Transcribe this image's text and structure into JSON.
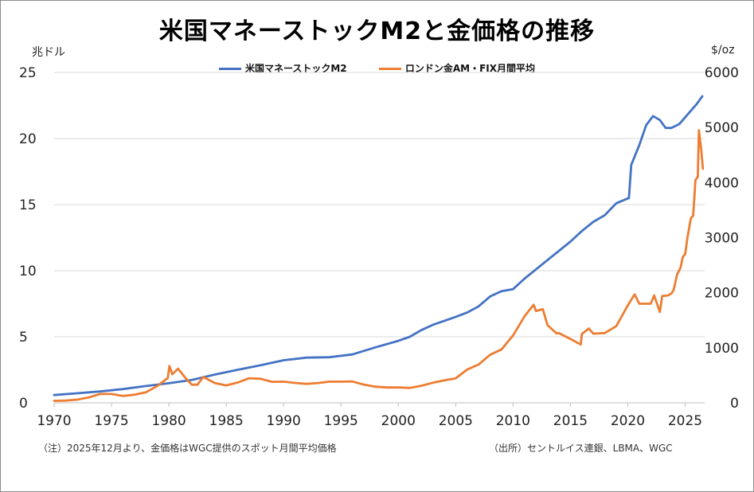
{
  "title": "米国マネーストックM2と金価格の推移",
  "unit_left": "兆ドル",
  "unit_right": "$/oz",
  "note_left": "（注）2025年12月より、金価格はWGC提供のスポット月間平均価格",
  "note_right": "（出所）セントルイス連銀、LBMA、WGC",
  "colors": {
    "m2": "#4472c4",
    "gold": "#ed7d31",
    "grid": "#d9d9d9",
    "axis": "#bfbfbf"
  },
  "chart_data": {
    "type": "line",
    "title": "米国マネーストックM2と金価格の推移",
    "x_ticks": [
      "1970",
      "1975",
      "1980",
      "1985",
      "1990",
      "1995",
      "2000",
      "2005",
      "2010",
      "2015",
      "2020",
      "2025"
    ],
    "xlim": [
      1970,
      2026.7
    ],
    "y_left": {
      "label": "兆ドル",
      "lim": [
        0,
        25
      ],
      "ticks": [
        "0",
        "5",
        "10",
        "15",
        "20",
        "25"
      ]
    },
    "y_right": {
      "label": "$/oz",
      "lim": [
        0,
        6000
      ],
      "ticks": [
        "0",
        "1000",
        "2000",
        "3000",
        "4000",
        "5000",
        "6000"
      ]
    },
    "grid": true,
    "legend_position": "top-center",
    "series": [
      {
        "name": "米国マネーストックM2",
        "axis": "left",
        "points": [
          [
            1970,
            0.59
          ],
          [
            1972,
            0.72
          ],
          [
            1974,
            0.86
          ],
          [
            1976,
            1.04
          ],
          [
            1978,
            1.27
          ],
          [
            1980,
            1.48
          ],
          [
            1982,
            1.73
          ],
          [
            1984,
            2.14
          ],
          [
            1986,
            2.5
          ],
          [
            1988,
            2.85
          ],
          [
            1990,
            3.22
          ],
          [
            1992,
            3.42
          ],
          [
            1994,
            3.45
          ],
          [
            1996,
            3.66
          ],
          [
            1998,
            4.2
          ],
          [
            2000,
            4.69
          ],
          [
            2001,
            5.0
          ],
          [
            2002,
            5.5
          ],
          [
            2003,
            5.9
          ],
          [
            2004,
            6.2
          ],
          [
            2005,
            6.5
          ],
          [
            2006,
            6.83
          ],
          [
            2007,
            7.3
          ],
          [
            2008,
            8.05
          ],
          [
            2009,
            8.45
          ],
          [
            2010,
            8.6
          ],
          [
            2011,
            9.4
          ],
          [
            2012,
            10.1
          ],
          [
            2013,
            10.8
          ],
          [
            2014,
            11.5
          ],
          [
            2015,
            12.2
          ],
          [
            2016,
            13.0
          ],
          [
            2017,
            13.7
          ],
          [
            2018,
            14.2
          ],
          [
            2019,
            15.1
          ],
          [
            2020.1,
            15.5
          ],
          [
            2020.3,
            18.0
          ],
          [
            2021,
            19.5
          ],
          [
            2021.6,
            21.0
          ],
          [
            2022.2,
            21.7
          ],
          [
            2022.8,
            21.4
          ],
          [
            2023.3,
            20.8
          ],
          [
            2023.8,
            20.8
          ],
          [
            2024.5,
            21.1
          ],
          [
            2025,
            21.6
          ],
          [
            2025.5,
            22.1
          ],
          [
            2026,
            22.6
          ],
          [
            2026.5,
            23.2
          ]
        ]
      },
      {
        "name": "ロンドン金AM・FIX月間平均",
        "axis": "right",
        "points": [
          [
            1970,
            36
          ],
          [
            1971,
            41
          ],
          [
            1972,
            58
          ],
          [
            1973,
            97
          ],
          [
            1974,
            160
          ],
          [
            1975,
            161
          ],
          [
            1976,
            125
          ],
          [
            1977,
            148
          ],
          [
            1978,
            193
          ],
          [
            1979,
            306
          ],
          [
            1979.9,
            450
          ],
          [
            1980.05,
            670
          ],
          [
            1980.3,
            520
          ],
          [
            1980.8,
            620
          ],
          [
            1981.5,
            440
          ],
          [
            1982,
            330
          ],
          [
            1982.5,
            330
          ],
          [
            1983,
            470
          ],
          [
            1984,
            360
          ],
          [
            1985,
            317
          ],
          [
            1986,
            368
          ],
          [
            1987,
            447
          ],
          [
            1988,
            437
          ],
          [
            1989,
            381
          ],
          [
            1990,
            384
          ],
          [
            1991,
            362
          ],
          [
            1992,
            344
          ],
          [
            1993,
            360
          ],
          [
            1994,
            384
          ],
          [
            1995,
            384
          ],
          [
            1996,
            388
          ],
          [
            1997,
            331
          ],
          [
            1998,
            294
          ],
          [
            1999,
            279
          ],
          [
            2000,
            279
          ],
          [
            2001,
            271
          ],
          [
            2002,
            310
          ],
          [
            2003,
            364
          ],
          [
            2004,
            409
          ],
          [
            2005,
            445
          ],
          [
            2006,
            604
          ],
          [
            2007,
            695
          ],
          [
            2008,
            872
          ],
          [
            2009,
            972
          ],
          [
            2010,
            1225
          ],
          [
            2011,
            1572
          ],
          [
            2011.8,
            1780
          ],
          [
            2012,
            1669
          ],
          [
            2012.6,
            1700
          ],
          [
            2013,
            1411
          ],
          [
            2013.8,
            1260
          ],
          [
            2014,
            1266
          ],
          [
            2015,
            1160
          ],
          [
            2015.9,
            1060
          ],
          [
            2016,
            1251
          ],
          [
            2016.6,
            1350
          ],
          [
            2017,
            1257
          ],
          [
            2018,
            1268
          ],
          [
            2019,
            1393
          ],
          [
            2020,
            1770
          ],
          [
            2020.6,
            1970
          ],
          [
            2021,
            1800
          ],
          [
            2021.5,
            1800
          ],
          [
            2022,
            1800
          ],
          [
            2022.3,
            1950
          ],
          [
            2022.8,
            1650
          ],
          [
            2023,
            1940
          ],
          [
            2023.5,
            1950
          ],
          [
            2023.8,
            1985
          ],
          [
            2024,
            2050
          ],
          [
            2024.3,
            2330
          ],
          [
            2024.6,
            2450
          ],
          [
            2024.8,
            2650
          ],
          [
            2025,
            2700
          ],
          [
            2025.2,
            3000
          ],
          [
            2025.5,
            3350
          ],
          [
            2025.7,
            3400
          ],
          [
            2025.9,
            4050
          ],
          [
            2026.1,
            4100
          ],
          [
            2026.2,
            4950
          ],
          [
            2026.4,
            4600
          ],
          [
            2026.55,
            4250
          ]
        ]
      }
    ]
  }
}
